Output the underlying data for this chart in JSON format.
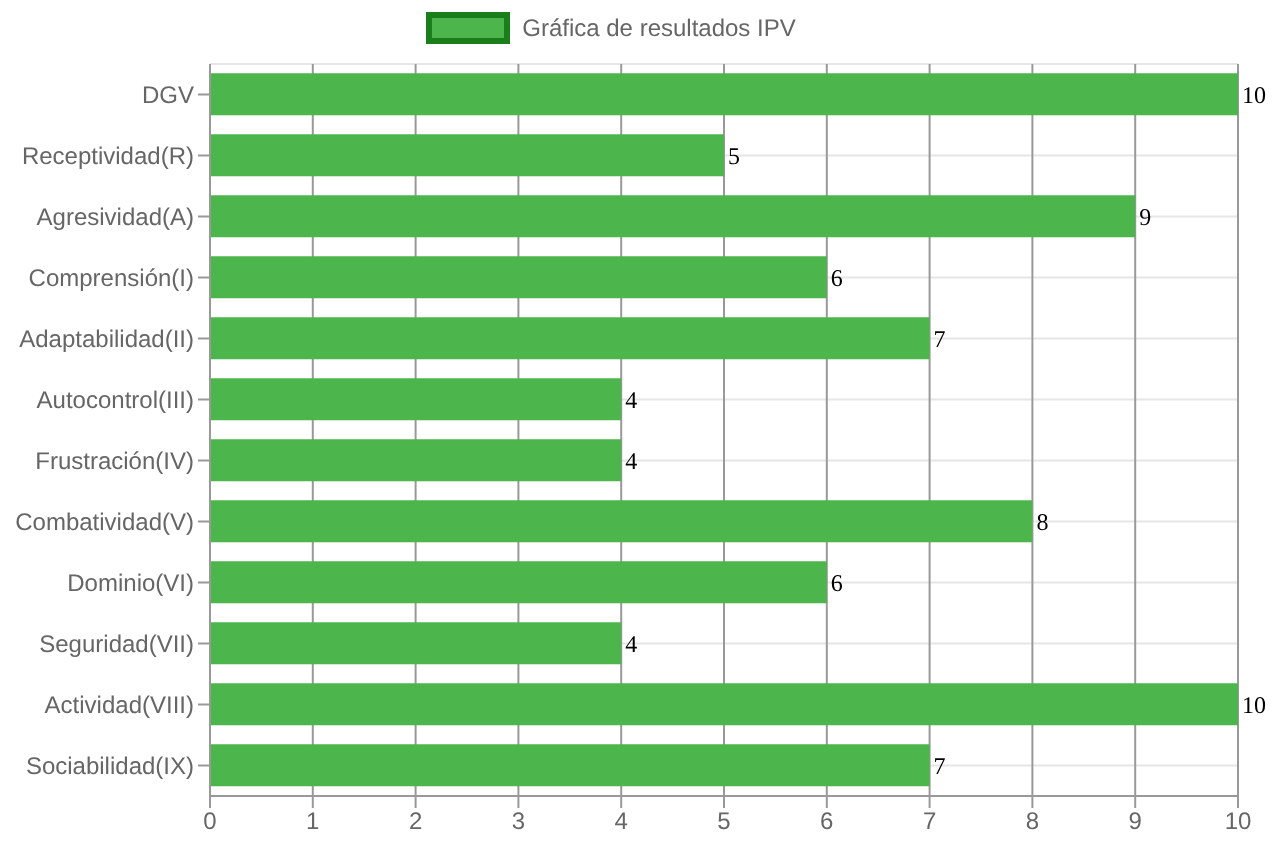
{
  "chart_data": {
    "type": "bar",
    "orientation": "horizontal",
    "categories": [
      "DGV",
      "Receptividad(R)",
      "Agresividad(A)",
      "Comprensión(I)",
      "Adaptabilidad(II)",
      "Autocontrol(III)",
      "Frustración(IV)",
      "Combatividad(V)",
      "Dominio(VI)",
      "Seguridad(VII)",
      "Actividad(VIII)",
      "Sociabilidad(IX)"
    ],
    "series": [
      {
        "name": "Gráfica de resultados IPV",
        "color": "#4cb54c",
        "values": [
          10,
          5,
          9,
          6,
          7,
          4,
          4,
          8,
          6,
          4,
          10,
          7
        ]
      }
    ],
    "xlim": [
      0,
      10
    ],
    "xticks": [
      0,
      1,
      2,
      3,
      4,
      5,
      6,
      7,
      8,
      9,
      10
    ],
    "grid": true,
    "legend": "top",
    "data_labels": true
  }
}
